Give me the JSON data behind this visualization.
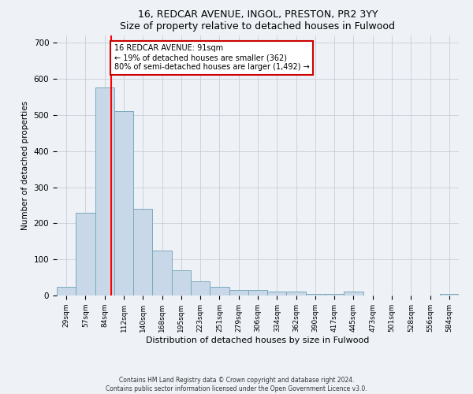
{
  "title": "16, REDCAR AVENUE, INGOL, PRESTON, PR2 3YY",
  "subtitle": "Size of property relative to detached houses in Fulwood",
  "xlabel": "Distribution of detached houses by size in Fulwood",
  "ylabel": "Number of detached properties",
  "bar_labels": [
    "29sqm",
    "57sqm",
    "84sqm",
    "112sqm",
    "140sqm",
    "168sqm",
    "195sqm",
    "223sqm",
    "251sqm",
    "279sqm",
    "306sqm",
    "334sqm",
    "362sqm",
    "390sqm",
    "417sqm",
    "445sqm",
    "473sqm",
    "501sqm",
    "528sqm",
    "556sqm",
    "584sqm"
  ],
  "bar_values": [
    25,
    230,
    575,
    510,
    240,
    125,
    70,
    40,
    25,
    15,
    15,
    10,
    10,
    5,
    5,
    10,
    0,
    0,
    0,
    0,
    5
  ],
  "bar_color": "#c8d8e8",
  "bar_edge_color": "#7aaabb",
  "red_line_x": 2.35,
  "annotation_text": "16 REDCAR AVENUE: 91sqm\n← 19% of detached houses are smaller (362)\n80% of semi-detached houses are larger (1,492) →",
  "annotation_box_color": "#ffffff",
  "annotation_box_edge_color": "#cc0000",
  "ylim": [
    0,
    720
  ],
  "yticks": [
    0,
    100,
    200,
    300,
    400,
    500,
    600,
    700
  ],
  "footer_line1": "Contains HM Land Registry data © Crown copyright and database right 2024.",
  "footer_line2": "Contains public sector information licensed under the Open Government Licence v3.0.",
  "bg_color": "#eef2f7",
  "grid_color": "#c8cdd8"
}
